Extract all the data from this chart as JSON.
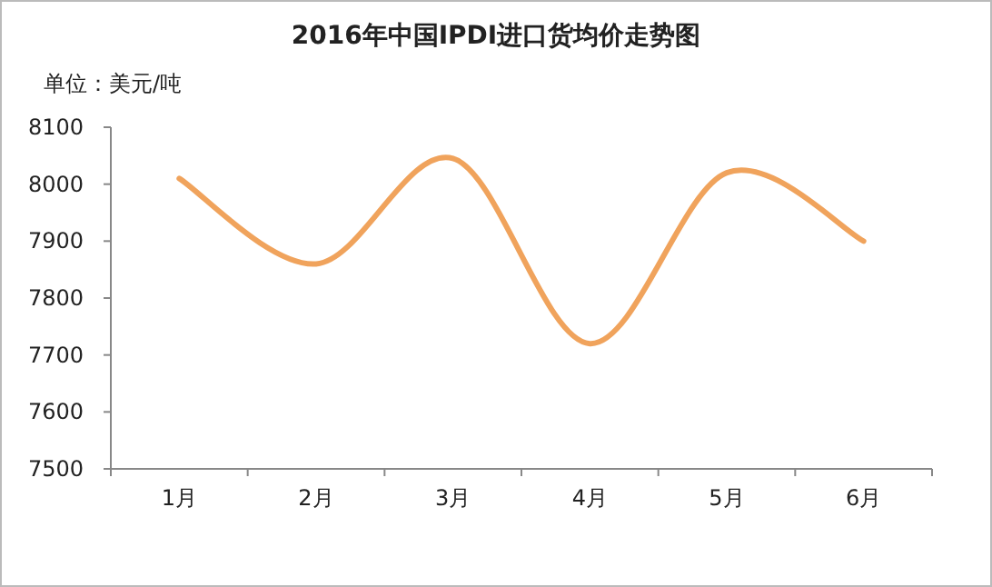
{
  "chart_data": {
    "type": "line",
    "title": "2016年中国IPDI进口货均价走势图",
    "ylabel": "单位：美元/吨",
    "categories": [
      "1月",
      "2月",
      "3月",
      "4月",
      "5月",
      "6月"
    ],
    "series": [
      {
        "color": "#f0a35c",
        "values": [
          8010,
          7860,
          8045,
          7720,
          8020,
          7900
        ]
      }
    ],
    "ylim": [
      7500,
      8100
    ],
    "yticks": [
      7500,
      7600,
      7700,
      7800,
      7900,
      8000,
      8100
    ],
    "grid": false,
    "marker": "none",
    "line_style": "solid"
  }
}
